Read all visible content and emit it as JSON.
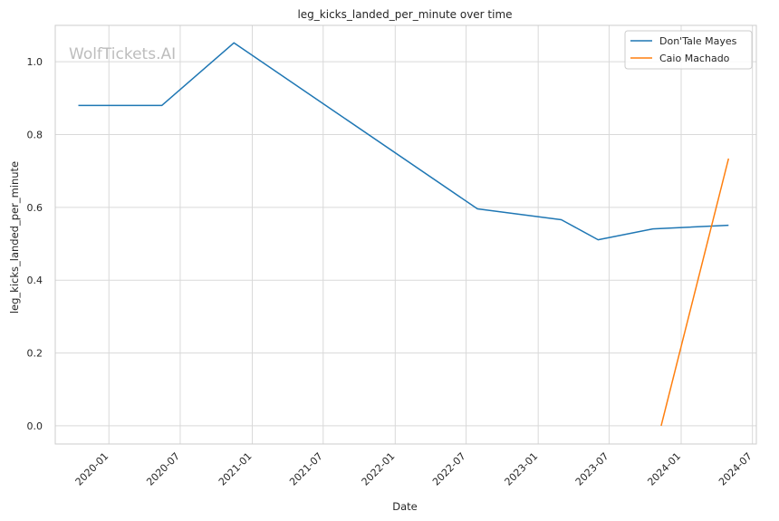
{
  "chart_data": {
    "type": "line",
    "title": "leg_kicks_landed_per_minute over time",
    "xlabel": "Date",
    "ylabel": "leg_kicks_landed_per_minute",
    "watermark": "WolfTickets.AI",
    "x_ticks": [
      "2020-01",
      "2020-07",
      "2021-01",
      "2021-07",
      "2022-01",
      "2022-07",
      "2023-01",
      "2023-07",
      "2024-01",
      "2024-07"
    ],
    "y_ticks": [
      "0.0",
      "0.2",
      "0.4",
      "0.6",
      "0.8",
      "1.0"
    ],
    "xlim": [
      "2019-08-17",
      "2024-07-11"
    ],
    "ylim": [
      -0.05,
      1.1
    ],
    "grid": true,
    "legend_position": "top-right",
    "series": [
      {
        "name": "Don'Tale Mayes",
        "color": "#1f77b4",
        "x": [
          "2019-10-15",
          "2020-05-15",
          "2020-11-15",
          "2022-07-30",
          "2023-03-01",
          "2023-06-03",
          "2023-10-21",
          "2024-05-01"
        ],
        "y": [
          0.88,
          0.88,
          1.052,
          0.596,
          0.566,
          0.511,
          0.541,
          0.551
        ]
      },
      {
        "name": "Caio Machado",
        "color": "#ff7f0e",
        "x": [
          "2023-11-11",
          "2024-05-01"
        ],
        "y": [
          0.0,
          0.734
        ]
      }
    ]
  }
}
